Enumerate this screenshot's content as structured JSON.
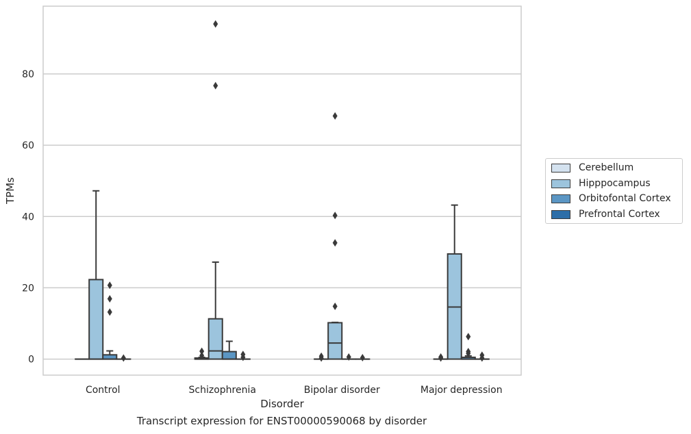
{
  "caption": "Transcript expression for ENST00000590068 by disorder",
  "chart_data": {
    "type": "box",
    "xlabel": "Disorder",
    "ylabel": "TPMs",
    "ylim": [
      -4.5,
      99
    ],
    "yticks": [
      0,
      20,
      40,
      60,
      80
    ],
    "grid": true,
    "legend_position": "right",
    "categories": [
      "Control",
      "Schizophrenia",
      "Bipolar disorder",
      "Major depression"
    ],
    "series": [
      {
        "name": "Cerebellum",
        "color": "#d4e2ef",
        "boxes": [
          {
            "q1": 0,
            "median": 0,
            "q3": 0,
            "whisker_low": 0,
            "whisker_high": 0,
            "outliers": []
          },
          {
            "q1": 0,
            "median": 0,
            "q3": 0.3,
            "whisker_low": 0,
            "whisker_high": 0.5,
            "outliers": [
              1.0,
              2.2
            ]
          },
          {
            "q1": 0,
            "median": 0,
            "q3": 0,
            "whisker_low": 0,
            "whisker_high": 0,
            "outliers": [
              0.3,
              0.8
            ]
          },
          {
            "q1": 0,
            "median": 0,
            "q3": 0,
            "whisker_low": 0,
            "whisker_high": 0,
            "outliers": [
              0.3,
              0.6
            ]
          }
        ]
      },
      {
        "name": "Hipppocampus",
        "color": "#9cc4dd",
        "boxes": [
          {
            "q1": 0,
            "median": 0,
            "q3": 22.3,
            "whisker_low": 0,
            "whisker_high": 47.2,
            "outliers": []
          },
          {
            "q1": 0,
            "median": 2.3,
            "q3": 11.3,
            "whisker_low": 0,
            "whisker_high": 27.2,
            "outliers": [
              76.7,
              94
            ]
          },
          {
            "q1": 0,
            "median": 4.5,
            "q3": 10.2,
            "whisker_low": 0,
            "whisker_high": 10.3,
            "outliers": [
              14.8,
              32.6,
              40.3,
              68.2
            ]
          },
          {
            "q1": 0,
            "median": 14.6,
            "q3": 29.5,
            "whisker_low": 0,
            "whisker_high": 43.2,
            "outliers": []
          }
        ]
      },
      {
        "name": "Orbitofontal Cortex",
        "color": "#5b96c4",
        "boxes": [
          {
            "q1": 0,
            "median": 0,
            "q3": 1.2,
            "whisker_low": 0,
            "whisker_high": 2.3,
            "outliers": [
              13.2,
              16.9,
              20.7
            ]
          },
          {
            "q1": 0,
            "median": 0,
            "q3": 2.1,
            "whisker_low": 0,
            "whisker_high": 5.0,
            "outliers": []
          },
          {
            "q1": 0,
            "median": 0,
            "q3": 0,
            "whisker_low": 0,
            "whisker_high": 0,
            "outliers": [
              0.6
            ]
          },
          {
            "q1": 0,
            "median": 0,
            "q3": 0.5,
            "whisker_low": 0,
            "whisker_high": 0.9,
            "outliers": [
              1.6,
              2.1,
              6.3
            ]
          }
        ]
      },
      {
        "name": "Prefrontal Cortex",
        "color": "#2d6ea8",
        "boxes": [
          {
            "q1": 0,
            "median": 0,
            "q3": 0,
            "whisker_low": 0,
            "whisker_high": 0,
            "outliers": [
              0.3
            ]
          },
          {
            "q1": 0,
            "median": 0,
            "q3": 0,
            "whisker_low": 0,
            "whisker_high": 0,
            "outliers": [
              0.5,
              1.3
            ]
          },
          {
            "q1": 0,
            "median": 0,
            "q3": 0,
            "whisker_low": 0,
            "whisker_high": 0,
            "outliers": [
              0.4
            ]
          },
          {
            "q1": 0,
            "median": 0,
            "q3": 0,
            "whisker_low": 0,
            "whisker_high": 0,
            "outliers": [
              0.3,
              1.1
            ]
          }
        ]
      }
    ]
  },
  "legend": {
    "items": [
      {
        "label": "Cerebellum",
        "color": "#d4e2ef"
      },
      {
        "label": "Hipppocampus",
        "color": "#9cc4dd"
      },
      {
        "label": "Orbitofontal Cortex",
        "color": "#5b96c4"
      },
      {
        "label": "Prefrontal Cortex",
        "color": "#2d6ea8"
      }
    ]
  }
}
